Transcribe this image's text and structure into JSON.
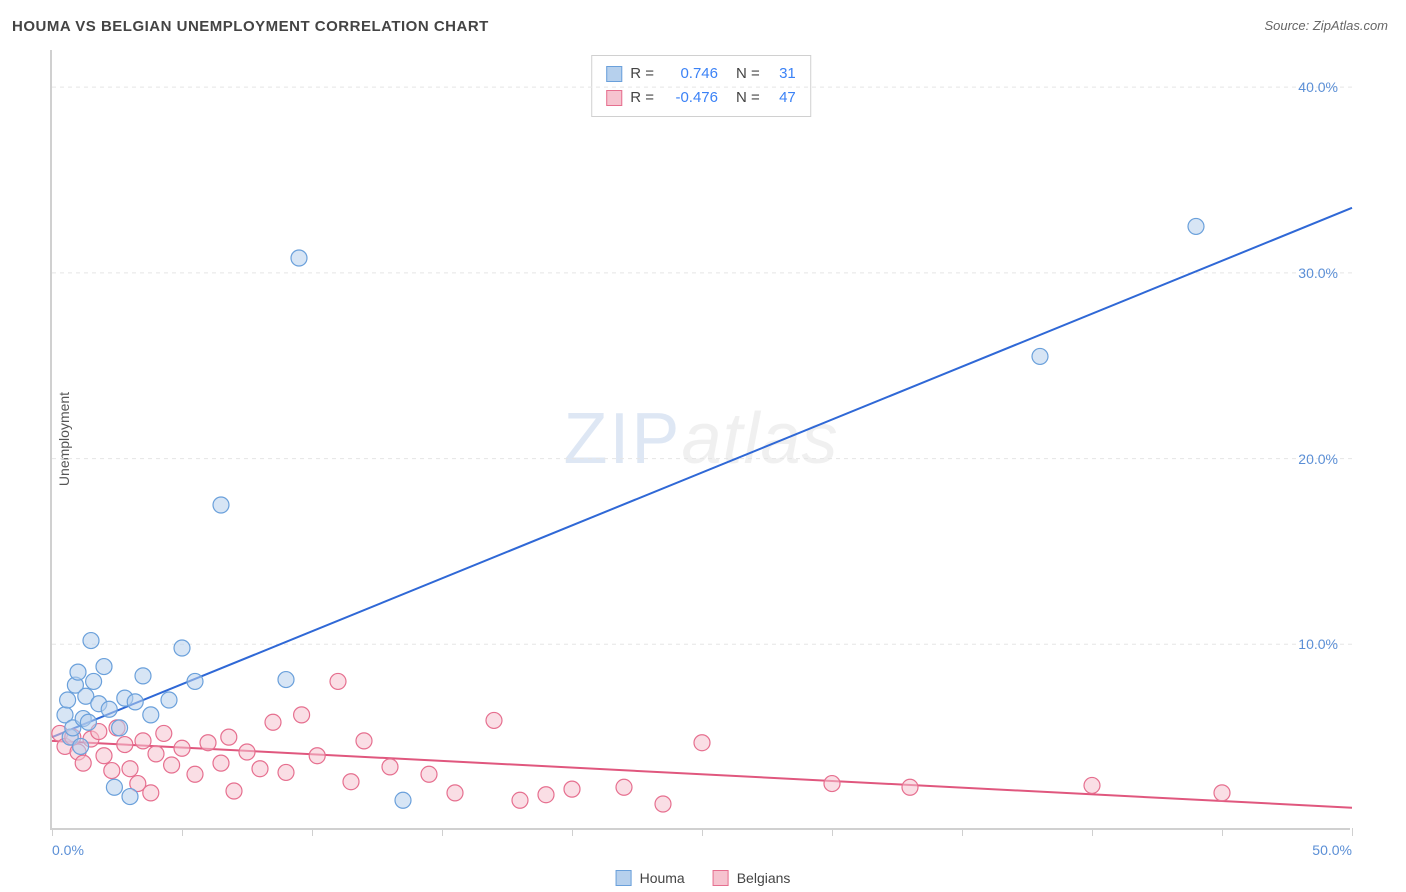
{
  "title": "HOUMA VS BELGIAN UNEMPLOYMENT CORRELATION CHART",
  "source": "Source: ZipAtlas.com",
  "yaxis_label": "Unemployment",
  "watermark": {
    "part1": "ZIP",
    "part2": "atlas"
  },
  "chart": {
    "type": "scatter-with-regression",
    "xlim": [
      0,
      50
    ],
    "ylim": [
      0,
      42
    ],
    "xtick_positions": [
      0,
      5,
      10,
      15,
      20,
      25,
      30,
      35,
      40,
      45,
      50
    ],
    "xtick_labels": {
      "0": "0.0%",
      "50": "50.0%"
    },
    "ytick_positions": [
      10,
      20,
      30,
      40
    ],
    "ytick_labels": [
      "10.0%",
      "20.0%",
      "30.0%",
      "40.0%"
    ],
    "grid_color": "#e5e5e5",
    "axis_color": "#d0d0d0",
    "tick_label_color": "#5b8fd6",
    "background_color": "#ffffff",
    "marker_radius": 8,
    "marker_stroke_width": 1.2,
    "line_width": 2,
    "series": {
      "houma": {
        "label": "Houma",
        "fill": "#b6d0ed",
        "stroke": "#6aa0db",
        "fill_opacity": 0.55,
        "regression": {
          "color": "#2f68d6",
          "x1": 0,
          "y1": 5.0,
          "x2": 50,
          "y2": 33.5
        },
        "stats": {
          "R": "0.746",
          "N": "31"
        },
        "points": [
          [
            0.5,
            6.2
          ],
          [
            0.6,
            7.0
          ],
          [
            0.7,
            5.0
          ],
          [
            0.8,
            5.5
          ],
          [
            0.9,
            7.8
          ],
          [
            1.0,
            8.5
          ],
          [
            1.1,
            4.5
          ],
          [
            1.2,
            6.0
          ],
          [
            1.3,
            7.2
          ],
          [
            1.4,
            5.8
          ],
          [
            1.5,
            10.2
          ],
          [
            1.6,
            8.0
          ],
          [
            1.8,
            6.8
          ],
          [
            2.0,
            8.8
          ],
          [
            2.2,
            6.5
          ],
          [
            2.4,
            2.3
          ],
          [
            2.6,
            5.5
          ],
          [
            2.8,
            7.1
          ],
          [
            3.0,
            1.8
          ],
          [
            3.2,
            6.9
          ],
          [
            3.5,
            8.3
          ],
          [
            4.5,
            7.0
          ],
          [
            5.0,
            9.8
          ],
          [
            5.5,
            8.0
          ],
          [
            6.5,
            17.5
          ],
          [
            9.0,
            8.1
          ],
          [
            9.5,
            30.8
          ],
          [
            13.5,
            1.6
          ],
          [
            38.0,
            25.5
          ],
          [
            44.0,
            32.5
          ],
          [
            3.8,
            6.2
          ]
        ]
      },
      "belgians": {
        "label": "Belgians",
        "fill": "#f6c3cf",
        "stroke": "#e66f8f",
        "fill_opacity": 0.55,
        "regression": {
          "color": "#e0577e",
          "x1": 0,
          "y1": 4.8,
          "x2": 50,
          "y2": 1.2
        },
        "stats": {
          "R": "-0.476",
          "N": "47"
        },
        "points": [
          [
            0.3,
            5.2
          ],
          [
            0.5,
            4.5
          ],
          [
            0.8,
            5.0
          ],
          [
            1.0,
            4.2
          ],
          [
            1.2,
            3.6
          ],
          [
            1.5,
            4.9
          ],
          [
            1.8,
            5.3
          ],
          [
            2.0,
            4.0
          ],
          [
            2.3,
            3.2
          ],
          [
            2.5,
            5.5
          ],
          [
            2.8,
            4.6
          ],
          [
            3.0,
            3.3
          ],
          [
            3.3,
            2.5
          ],
          [
            3.5,
            4.8
          ],
          [
            3.8,
            2.0
          ],
          [
            4.0,
            4.1
          ],
          [
            4.3,
            5.2
          ],
          [
            4.6,
            3.5
          ],
          [
            5.0,
            4.4
          ],
          [
            5.5,
            3.0
          ],
          [
            6.0,
            4.7
          ],
          [
            6.5,
            3.6
          ],
          [
            7.0,
            2.1
          ],
          [
            7.5,
            4.2
          ],
          [
            8.0,
            3.3
          ],
          [
            8.5,
            5.8
          ],
          [
            9.0,
            3.1
          ],
          [
            9.6,
            6.2
          ],
          [
            10.2,
            4.0
          ],
          [
            11.0,
            8.0
          ],
          [
            12.0,
            4.8
          ],
          [
            13.0,
            3.4
          ],
          [
            14.5,
            3.0
          ],
          [
            15.5,
            2.0
          ],
          [
            17.0,
            5.9
          ],
          [
            18.0,
            1.6
          ],
          [
            19.0,
            1.9
          ],
          [
            20.0,
            2.2
          ],
          [
            22.0,
            2.3
          ],
          [
            23.5,
            1.4
          ],
          [
            25.0,
            4.7
          ],
          [
            30.0,
            2.5
          ],
          [
            33.0,
            2.3
          ],
          [
            40.0,
            2.4
          ],
          [
            45.0,
            2.0
          ],
          [
            6.8,
            5.0
          ],
          [
            11.5,
            2.6
          ]
        ]
      }
    }
  },
  "stats_legend": {
    "r_label": "R =",
    "n_label": "N ="
  }
}
